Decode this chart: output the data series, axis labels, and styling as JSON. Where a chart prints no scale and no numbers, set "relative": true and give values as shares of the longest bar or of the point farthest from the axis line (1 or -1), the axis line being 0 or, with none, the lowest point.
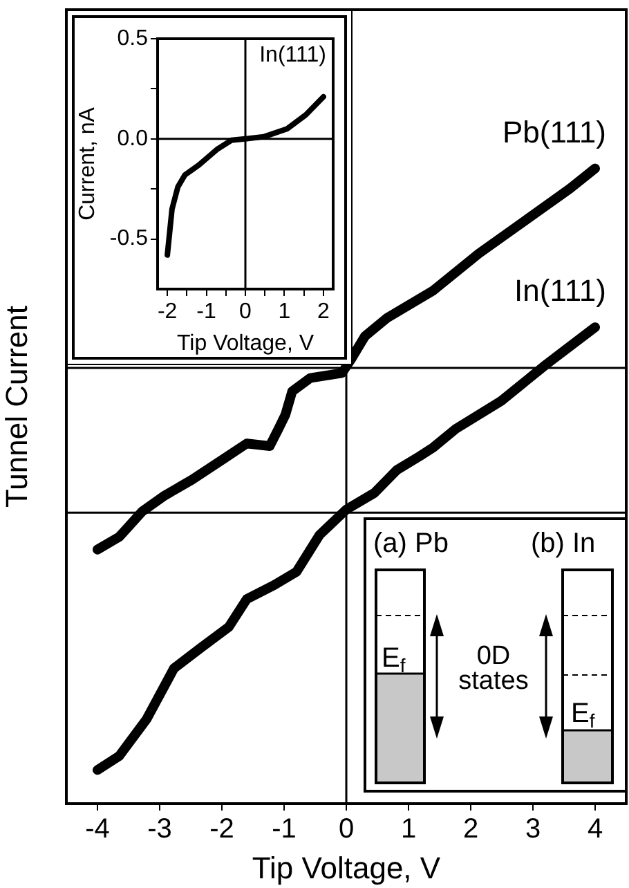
{
  "chart_data": [
    {
      "type": "line",
      "xlabel": "Tip Voltage, V",
      "ylabel": "Tunnel Current",
      "relative": true,
      "xlim": [
        -4.5,
        4.5
      ],
      "xticks": [
        -4,
        -3,
        -2,
        -1,
        0,
        1,
        2,
        3,
        4
      ],
      "series": [
        {
          "name": "Pb(111)",
          "color": "#000000",
          "x": [
            -4,
            -3.65,
            -3.28,
            -2.92,
            -2.48,
            -1.97,
            -1.6,
            -1.23,
            -1.09,
            -0.98,
            -0.87,
            -0.58,
            -0.07,
            0.08,
            0.3,
            0.66,
            1.4,
            2.13,
            2.86,
            3.59,
            4
          ],
          "values": [
            0.4,
            0.42,
            0.46,
            0.485,
            0.51,
            0.543,
            0.567,
            0.563,
            0.59,
            0.612,
            0.649,
            0.67,
            0.678,
            0.7,
            0.736,
            0.765,
            0.808,
            0.866,
            0.917,
            0.968,
            1
          ]
        },
        {
          "name": "In(111)",
          "color": "#000000",
          "x": [
            -4,
            -3.65,
            -3.21,
            -2.77,
            -2.33,
            -1.89,
            -1.6,
            -1.16,
            -0.8,
            -0.43,
            0,
            0.45,
            0.81,
            1.18,
            1.4,
            1.76,
            2.49,
            3.22,
            4
          ],
          "values": [
            0.053,
            0.075,
            0.133,
            0.213,
            0.246,
            0.278,
            0.322,
            0.344,
            0.365,
            0.423,
            0.463,
            0.489,
            0.525,
            0.547,
            0.561,
            0.59,
            0.634,
            0.692,
            0.75
          ]
        }
      ],
      "ref_lines": [
        {
          "axis": "y",
          "value": 0.686
        },
        {
          "axis": "y",
          "value": 0.458
        },
        {
          "axis": "x",
          "value": 0
        }
      ],
      "annotations": [
        "(a) Pb",
        "(b) In",
        "E$_{f}$",
        "E$_{f}$",
        "0D states"
      ]
    },
    {
      "type": "line",
      "xlabel": "Tip Voltage, V",
      "ylabel": "Current, nA",
      "xlim": [
        -2.25,
        2.25
      ],
      "ylim": [
        -0.75,
        0.5
      ],
      "xticks": [
        -2,
        {
          "value": -1.5,
          "label": null
        },
        -1,
        {
          "value": -0.5,
          "label": null
        },
        0,
        {
          "value": 0.5,
          "label": null
        },
        1,
        {
          "value": 1.5,
          "label": null
        },
        2
      ],
      "yticks": [
        -0.5,
        {
          "value": -0.25,
          "label": null
        },
        {
          "value": 0,
          "label": "0.0"
        },
        {
          "value": 0.25,
          "label": null
        },
        0.5
      ],
      "series": [
        {
          "name": "In(111)",
          "color": "#000000",
          "x": [
            -2,
            -1.88,
            -1.73,
            -1.55,
            -1.19,
            -0.71,
            -0.36,
            0,
            0.48,
            1.07,
            1.55,
            2
          ],
          "values": [
            -0.58,
            -0.35,
            -0.24,
            -0.18,
            -0.13,
            -0.05,
            -0.007,
            0,
            0.011,
            0.05,
            0.12,
            0.21
          ]
        }
      ],
      "ref_lines": [
        {
          "axis": "x",
          "value": 0
        },
        {
          "axis": "y",
          "value": 0
        }
      ]
    }
  ]
}
